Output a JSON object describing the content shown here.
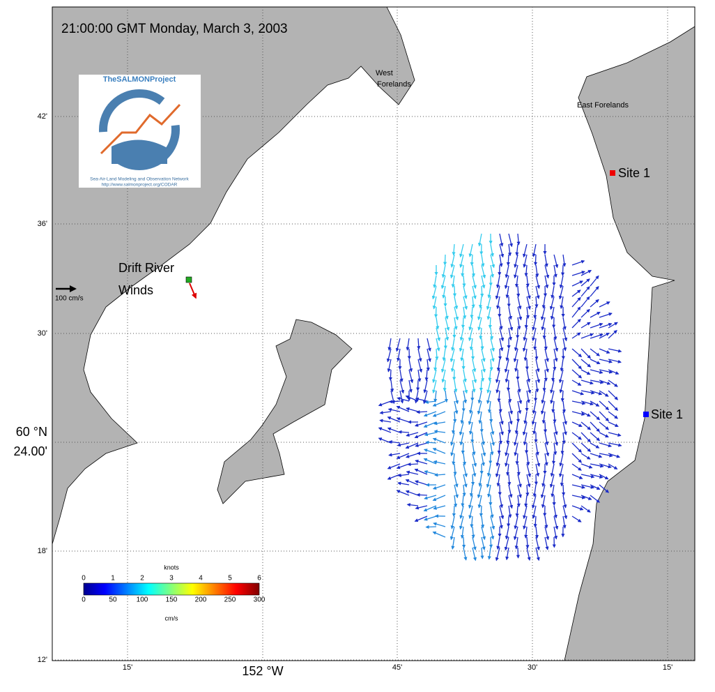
{
  "title": "21:00:00 GMT Monday, March 3, 2003",
  "logo": {
    "name": "TheSALMONProject",
    "subtitle": "Sea-Air-Land Modeling and Observation Network",
    "url": "http://www.salmonproject.org/CODAR"
  },
  "places": {
    "west_forelands": [
      "West",
      "Forelands"
    ],
    "east_forelands": "East Forelands",
    "site_north": "Site 1",
    "site_south": "Site 1",
    "drift_river": [
      "Drift River",
      "Winds"
    ]
  },
  "scale_arrow": "100 cm/s",
  "lat_ticks": [
    "42'",
    "36'",
    "30'",
    "60 °N",
    "24.00'",
    "18'",
    "12'"
  ],
  "lon_ticks": [
    "15'",
    "152 °W",
    "45'",
    "30'",
    "15'"
  ],
  "colorbar": {
    "top_label": "knots",
    "top_ticks": [
      "0",
      "1",
      "2",
      "3",
      "4",
      "5",
      "6"
    ],
    "bottom_ticks": [
      "0",
      "50",
      "100",
      "150",
      "200",
      "250",
      "300"
    ],
    "bottom_label": "cm/s"
  }
}
